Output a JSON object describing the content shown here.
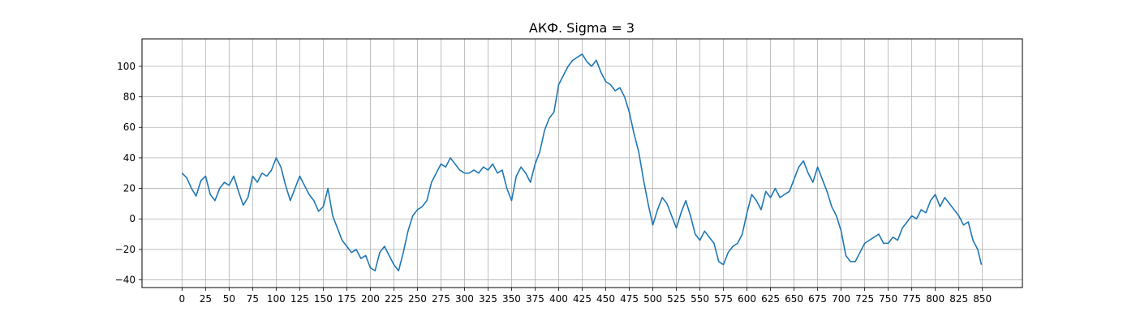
{
  "chart_data": {
    "type": "line",
    "title": "АКФ. Sigma = 3",
    "xlabel": "",
    "ylabel": "",
    "xlim": [
      -42.5,
      892.5
    ],
    "ylim": [
      -45,
      118
    ],
    "grid": true,
    "line_color": "#1f77b4",
    "grid_color": "#b0b0b0",
    "x_ticks": [
      0,
      25,
      50,
      75,
      100,
      125,
      150,
      175,
      200,
      225,
      250,
      275,
      300,
      325,
      350,
      375,
      400,
      425,
      450,
      475,
      500,
      525,
      550,
      575,
      600,
      625,
      650,
      675,
      700,
      725,
      750,
      775,
      800,
      825,
      850
    ],
    "y_ticks": [
      -40,
      -20,
      0,
      20,
      40,
      60,
      80,
      100
    ],
    "series": [
      {
        "x": [
          0,
          5,
          10,
          15,
          20,
          25,
          30,
          35,
          40,
          45,
          50,
          55,
          60,
          65,
          70,
          75,
          80,
          85,
          90,
          95,
          100,
          105,
          110,
          115,
          120,
          125,
          130,
          135,
          140,
          145,
          150,
          155,
          160,
          165,
          170,
          175,
          180,
          185,
          190,
          195,
          200,
          205,
          210,
          215,
          220,
          225,
          230,
          235,
          240,
          245,
          250,
          255,
          260,
          265,
          270,
          275,
          280,
          285,
          290,
          295,
          300,
          305,
          310,
          315,
          320,
          325,
          330,
          335,
          340,
          345,
          350,
          355,
          360,
          365,
          370,
          375,
          380,
          385,
          390,
          395,
          400,
          405,
          410,
          415,
          420,
          425,
          430,
          435,
          440,
          445,
          450,
          455,
          460,
          465,
          470,
          475,
          480,
          485,
          490,
          495,
          500,
          505,
          510,
          515,
          520,
          525,
          530,
          535,
          540,
          545,
          550,
          555,
          560,
          565,
          570,
          575,
          580,
          585,
          590,
          595,
          600,
          605,
          610,
          615,
          620,
          625,
          630,
          635,
          640,
          645,
          650,
          655,
          660,
          665,
          670,
          675,
          680,
          685,
          690,
          695,
          700,
          705,
          710,
          715,
          720,
          725,
          730,
          735,
          740,
          745,
          750,
          755,
          760,
          765,
          770,
          775,
          780,
          785,
          790,
          795,
          800,
          805,
          810,
          815,
          820,
          825,
          830,
          835,
          840,
          845,
          849
        ],
        "y": [
          30,
          27,
          20,
          15,
          25,
          28,
          16,
          12,
          20,
          24,
          22,
          28,
          18,
          9,
          14,
          28,
          24,
          30,
          28,
          32,
          40,
          34,
          22,
          12,
          20,
          28,
          22,
          16,
          12,
          5,
          8,
          20,
          2,
          -6,
          -14,
          -18,
          -22,
          -20,
          -26,
          -24,
          -32,
          -34,
          -22,
          -18,
          -24,
          -30,
          -34,
          -22,
          -8,
          2,
          6,
          8,
          12,
          24,
          30,
          36,
          34,
          40,
          36,
          32,
          30,
          30,
          32,
          30,
          34,
          32,
          36,
          30,
          32,
          20,
          12,
          28,
          34,
          30,
          24,
          36,
          44,
          58,
          66,
          70,
          88,
          94,
          100,
          104,
          106,
          108,
          103,
          100,
          104,
          96,
          90,
          88,
          84,
          86,
          80,
          70,
          56,
          44,
          26,
          10,
          -4,
          6,
          14,
          10,
          2,
          -6,
          4,
          12,
          2,
          -10,
          -14,
          -8,
          -12,
          -16,
          -28,
          -30,
          -22,
          -18,
          -16,
          -10,
          4,
          16,
          12,
          6,
          18,
          14,
          20,
          14,
          16,
          18,
          26,
          34,
          38,
          30,
          24,
          34,
          26,
          18,
          8,
          2,
          -8,
          -24,
          -28,
          -28,
          -22,
          -16,
          -14,
          -12,
          -10,
          -16,
          -16,
          -12,
          -14,
          -6,
          -2,
          2,
          0,
          6,
          4,
          12,
          16,
          8,
          14,
          10,
          6,
          2,
          -4,
          -2,
          -14,
          -20,
          -30
        ]
      }
    ]
  }
}
